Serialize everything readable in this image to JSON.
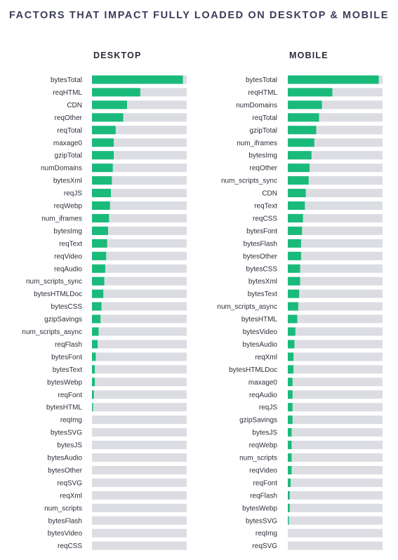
{
  "title": "FACTORS THAT IMPACT FULLY LOADED ON DESKTOP & MOBILE",
  "colors": {
    "bar": "#1aba7b",
    "track": "#dcdde3",
    "text": "#2d2e3a"
  },
  "chart_data": [
    {
      "type": "bar",
      "title": "DESKTOP",
      "orientation": "horizontal",
      "xlim": [
        0,
        1
      ],
      "categories": [
        "bytesTotal",
        "reqHTML",
        "CDN",
        "reqOther",
        "reqTotal",
        "maxage0",
        "gzipTotal",
        "numDomains",
        "bytesXml",
        "reqJS",
        "reqWebp",
        "num_iframes",
        "bytesImg",
        "reqText",
        "reqVideo",
        "reqAudio",
        "num_scripts_sync",
        "bytesHTMLDoc",
        "bytesCSS",
        "gzipSavings",
        "num_scripts_async",
        "reqFlash",
        "bytesFont",
        "bytesText",
        "bytesWebp",
        "reqFont",
        "bytesHTML",
        "reqImg",
        "bytesSVG",
        "bytesJS",
        "bytesAudio",
        "bytesOther",
        "reqSVG",
        "reqXml",
        "num_scripts",
        "bytesFlash",
        "bytesVideo",
        "reqCSS"
      ],
      "values": [
        0.96,
        0.51,
        0.37,
        0.33,
        0.25,
        0.23,
        0.23,
        0.22,
        0.21,
        0.2,
        0.19,
        0.18,
        0.17,
        0.16,
        0.15,
        0.14,
        0.13,
        0.12,
        0.1,
        0.09,
        0.07,
        0.06,
        0.04,
        0.03,
        0.03,
        0.02,
        0.01,
        0,
        0,
        0,
        0,
        0,
        0,
        0,
        0,
        0,
        0,
        0
      ]
    },
    {
      "type": "bar",
      "title": "MOBILE",
      "orientation": "horizontal",
      "xlim": [
        0,
        1
      ],
      "categories": [
        "bytesTotal",
        "reqHTML",
        "numDomains",
        "reqTotal",
        "gzipTotal",
        "num_iframes",
        "bytesImg",
        "reqOther",
        "num_scripts_sync",
        "CDN",
        "reqText",
        "reqCSS",
        "bytesFont",
        "bytesFlash",
        "bytesOther",
        "bytesCSS",
        "bytesXml",
        "bytesText",
        "num_scripts_async",
        "bytesHTML",
        "bytesVideo",
        "bytesAudio",
        "reqXml",
        "bytesHTMLDoc",
        "maxage0",
        "reqAudio",
        "reqJS",
        "gzipSavings",
        "bytesJS",
        "reqWebp",
        "num_scripts",
        "reqVideo",
        "reqFont",
        "reqFlash",
        "bytesWebp",
        "bytesSVG",
        "reqImg",
        "reqSVG"
      ],
      "values": [
        0.96,
        0.47,
        0.36,
        0.33,
        0.3,
        0.28,
        0.25,
        0.23,
        0.22,
        0.19,
        0.18,
        0.16,
        0.15,
        0.14,
        0.14,
        0.13,
        0.13,
        0.12,
        0.11,
        0.1,
        0.08,
        0.07,
        0.06,
        0.06,
        0.05,
        0.05,
        0.05,
        0.05,
        0.04,
        0.04,
        0.04,
        0.04,
        0.03,
        0.02,
        0.02,
        0.01,
        0,
        0
      ]
    }
  ]
}
